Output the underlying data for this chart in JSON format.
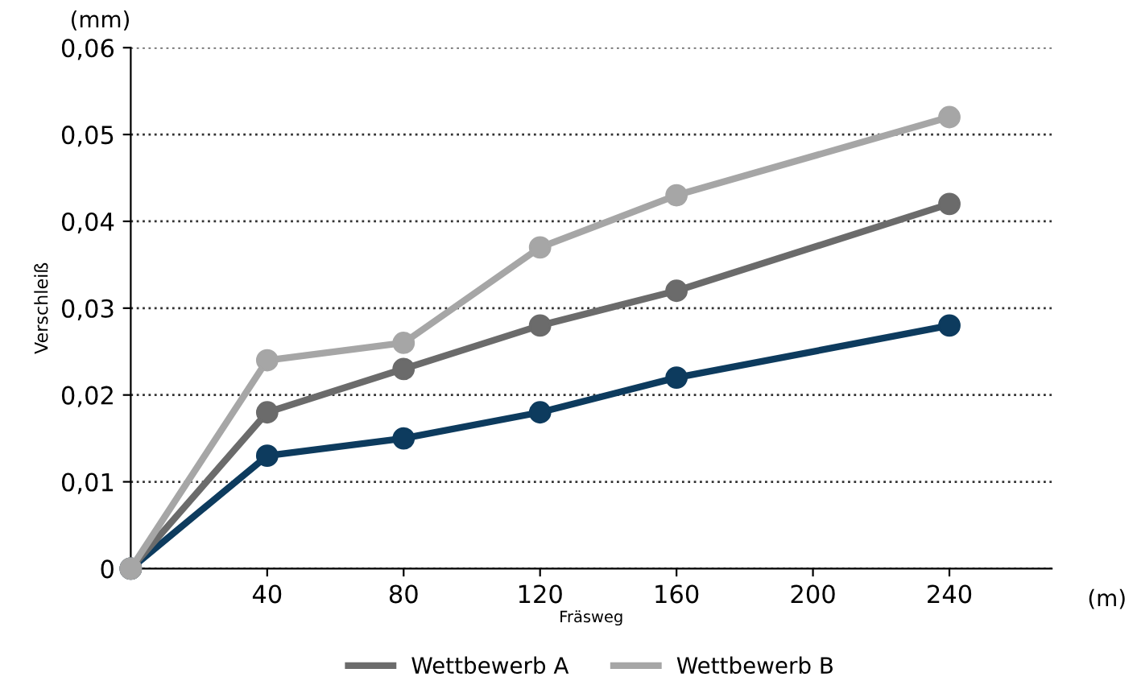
{
  "chart_data": {
    "type": "line",
    "xlabel": "Fräsweg",
    "ylabel": "Verschleiß",
    "annotations": [
      "(mm)",
      "(m)"
    ],
    "x": [
      0,
      40,
      80,
      120,
      160,
      240
    ],
    "series": [
      {
        "color": "#0d3b5e",
        "values": [
          0,
          0.013,
          0.015,
          0.018,
          0.022,
          0.028
        ]
      },
      {
        "name": "Wettbewerb A",
        "color": "#6b6b6b",
        "values": [
          0,
          0.018,
          0.023,
          0.028,
          0.032,
          0.042
        ]
      },
      {
        "name": "Wettbewerb B",
        "color": "#a6a6a6",
        "values": [
          0,
          0.024,
          0.026,
          0.037,
          0.043,
          0.052
        ]
      }
    ],
    "xlim": [
      0,
      270
    ],
    "xticks": [
      40,
      80,
      120,
      160,
      200,
      240
    ],
    "ylim": [
      0,
      0.06
    ],
    "yticks": [
      0,
      {
        "value": 0.01,
        "label": "0,01"
      },
      {
        "value": 0.02,
        "label": "0,02"
      },
      {
        "value": 0.03,
        "label": "0,03"
      },
      {
        "value": 0.04,
        "label": "0,04"
      },
      {
        "value": 0.05,
        "label": "0,05"
      },
      {
        "value": 0.06,
        "label": "0,06"
      }
    ],
    "grid": "y",
    "legend": "bottom",
    "marker": "circle",
    "line_style": "solid"
  }
}
